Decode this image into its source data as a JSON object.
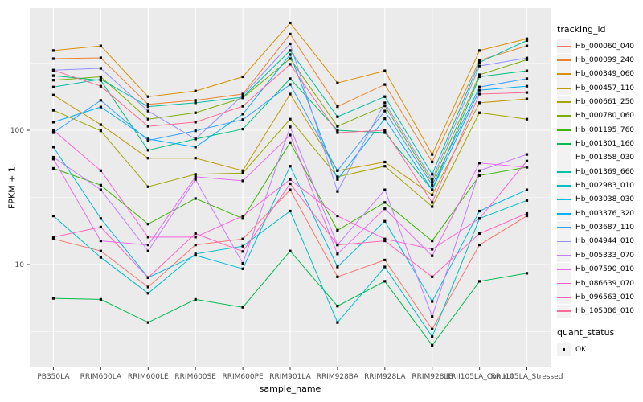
{
  "panel": {
    "bg": "#EBEBEB",
    "grid": "#FFFFFF",
    "tick_color": "#333333",
    "tick_label_color": "#4D4D4D"
  },
  "legend": {
    "tracking_title": "tracking_id",
    "quant_title": "quant_status",
    "quant_items": [
      {
        "label": "OK"
      }
    ]
  },
  "chart_data": {
    "type": "line",
    "title": "",
    "xlabel": "sample_name",
    "ylabel": "FPKM + 1",
    "y_scale": "log10",
    "y_ticks": [
      10,
      100
    ],
    "y_tick_labels": [
      "10",
      "100"
    ],
    "y_minor": [
      3.162,
      31.62,
      316.2
    ],
    "ylim": [
      1.7,
      815
    ],
    "grid": true,
    "legend_position": "right",
    "marker": "square",
    "marker_color": "#000000",
    "categories": [
      "PB350LA",
      "RRIM600LA",
      "RRIM600LE",
      "RRIM600SE",
      "RRIM600PE",
      "RRIM901LA",
      "RRIM928BA",
      "RRIM928LA",
      "RRIM928LE",
      "RRII105LA_Control",
      "RRII105LA_Stressed"
    ],
    "series": [
      {
        "name": "Hb_000060_040",
        "color": "#F8766D",
        "values": [
          15.5,
          12.6,
          6.8,
          14,
          15.5,
          36,
          8.1,
          10.8,
          3.3,
          14,
          23
        ]
      },
      {
        "name": "Hb_000099_240",
        "color": "#EA8331",
        "values": [
          341,
          346,
          156,
          167,
          186,
          520,
          150,
          219,
          58,
          332,
          425
        ]
      },
      {
        "name": "Hb_000349_060",
        "color": "#D89000",
        "values": [
          392,
          425,
          178,
          196,
          250,
          630,
          225,
          277,
          66,
          392,
          480
        ]
      },
      {
        "name": "Hb_000457_110",
        "color": "#C09B00",
        "values": [
          183,
          110,
          62,
          62,
          50,
          186,
          50,
          58,
          33,
          160,
          171
        ]
      },
      {
        "name": "Hb_000661_250",
        "color": "#A3A500",
        "values": [
          141,
          99,
          38,
          47,
          48,
          121,
          45,
          54,
          27,
          135,
          121
        ]
      },
      {
        "name": "Hb_000780_060",
        "color": "#7CAE00",
        "values": [
          236,
          250,
          121,
          135,
          174,
          341,
          107,
          152,
          41,
          259,
          335
        ]
      },
      {
        "name": "Hb_001195_760",
        "color": "#39B600",
        "values": [
          52,
          39,
          20,
          31,
          22,
          81,
          18,
          29,
          15,
          46,
          53
        ]
      },
      {
        "name": "Hb_001301_160",
        "color": "#00BB4E",
        "values": [
          5.6,
          5.5,
          3.7,
          5.5,
          4.8,
          12.6,
          4.9,
          7.5,
          2.5,
          7.5,
          8.6
        ]
      },
      {
        "name": "Hb_001358_030",
        "color": "#00BF7D",
        "values": [
          255,
          235,
          71,
          86,
          102,
          242,
          100,
          96,
          36,
          250,
          277
        ]
      },
      {
        "name": "Hb_001369_660",
        "color": "#00C1A3",
        "values": [
          210,
          240,
          150,
          160,
          176,
          392,
          126,
          178,
          47,
          320,
          465
        ]
      },
      {
        "name": "Hb_002983_010",
        "color": "#00BFC4",
        "values": [
          23,
          11.3,
          6.1,
          12,
          13.7,
          25,
          3.7,
          9.6,
          2.9,
          22,
          30
        ]
      },
      {
        "name": "Hb_003038_030",
        "color": "#00BAE0",
        "values": [
          75,
          22,
          8,
          11.7,
          9.3,
          54,
          9.6,
          21,
          5.3,
          25,
          36
        ]
      },
      {
        "name": "Hb_003376_320",
        "color": "#00B0F6",
        "values": [
          115,
          149,
          86,
          75,
          132,
          366,
          43,
          122,
          36,
          199,
          213
        ]
      },
      {
        "name": "Hb_003687_110",
        "color": "#35A2FF",
        "values": [
          96,
          167,
          84,
          99,
          120,
          219,
          50,
          139,
          39,
          210,
          242
        ]
      },
      {
        "name": "Hb_004944_010",
        "color": "#9590FF",
        "values": [
          280,
          289,
          139,
          86,
          182,
          440,
          35,
          160,
          43,
          301,
          345
        ]
      },
      {
        "name": "Hb_005333_070",
        "color": "#C77CFF",
        "values": [
          63,
          36,
          12.6,
          43,
          10.2,
          106,
          14,
          36,
          4.1,
          50,
          66
        ]
      },
      {
        "name": "Hb_007590_010",
        "color": "#E76BF3",
        "values": [
          61,
          15,
          14,
          45,
          42,
          92,
          12,
          26,
          11.6,
          57,
          53
        ]
      },
      {
        "name": "Hb_086639_070",
        "color": "#FA62DB",
        "values": [
          100,
          50,
          16,
          16,
          23,
          43,
          23,
          15.5,
          13,
          22,
          59
        ]
      },
      {
        "name": "Hb_096563_010",
        "color": "#FF62BC",
        "values": [
          16,
          19,
          8,
          17,
          12.5,
          40,
          14,
          15,
          8.1,
          17,
          24
        ]
      },
      {
        "name": "Hb_105386_010",
        "color": "#FF6A98",
        "values": [
          280,
          213,
          107,
          115,
          151,
          310,
          96,
          100,
          29,
          186,
          191
        ]
      }
    ]
  }
}
